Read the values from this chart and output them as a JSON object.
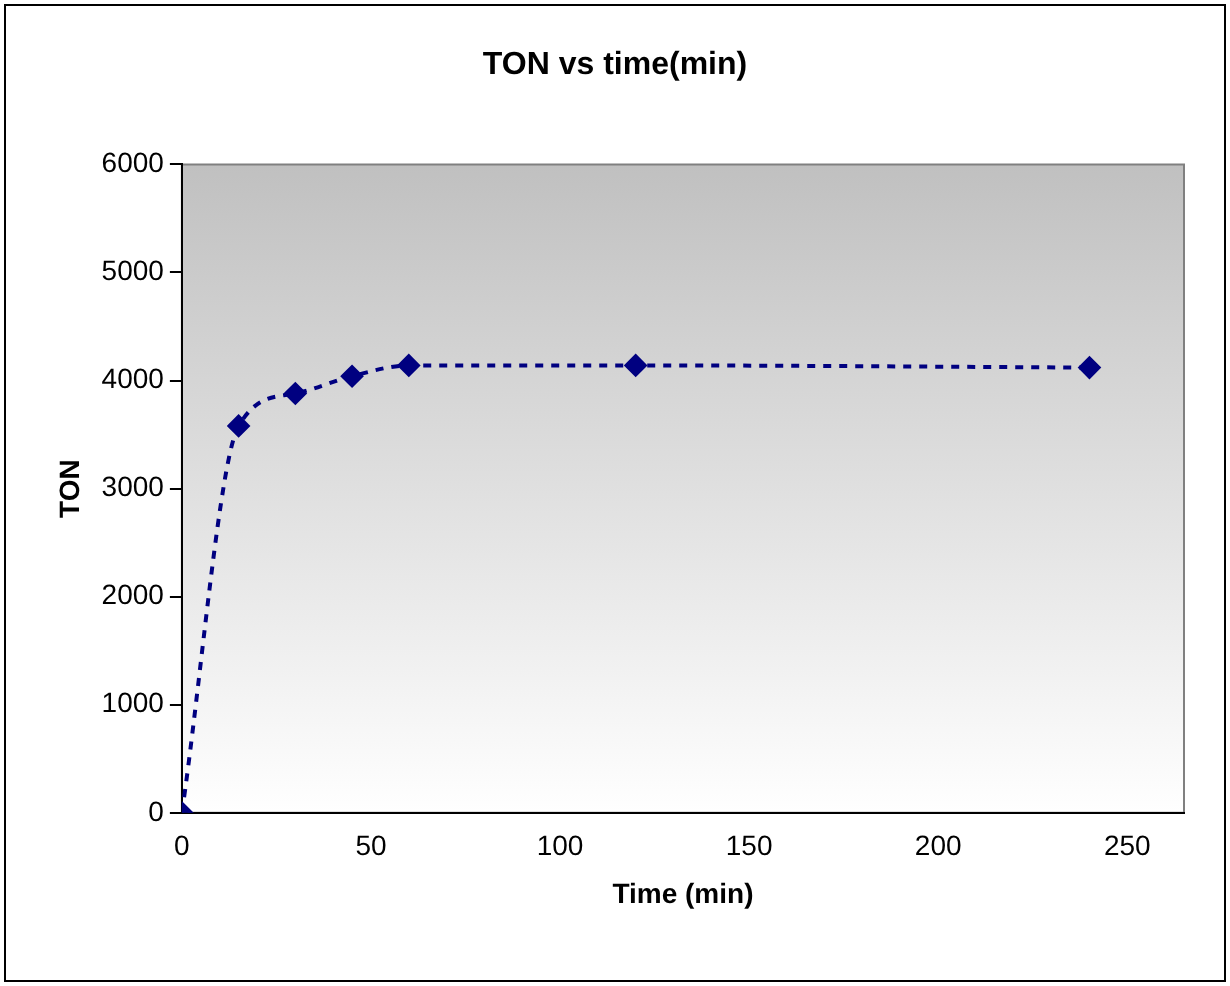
{
  "chart_data": {
    "type": "line",
    "title": "TON vs time(min)",
    "xlabel": "Time (min)",
    "ylabel": "TON",
    "x": [
      0,
      15,
      30,
      45,
      60,
      120,
      240
    ],
    "series": [
      {
        "color": "#000080",
        "values": [
          0,
          3580,
          3880,
          4040,
          4140,
          4140,
          4120
        ]
      }
    ],
    "xlim": [
      0,
      265
    ],
    "xticks": [
      0,
      50,
      100,
      150,
      200,
      250
    ],
    "ylim": [
      0,
      6000
    ],
    "yticks": [
      0,
      1000,
      2000,
      3000,
      4000,
      5000,
      6000
    ],
    "grid": false,
    "legend": false,
    "marker": "diamond",
    "line_style": "dotted"
  }
}
